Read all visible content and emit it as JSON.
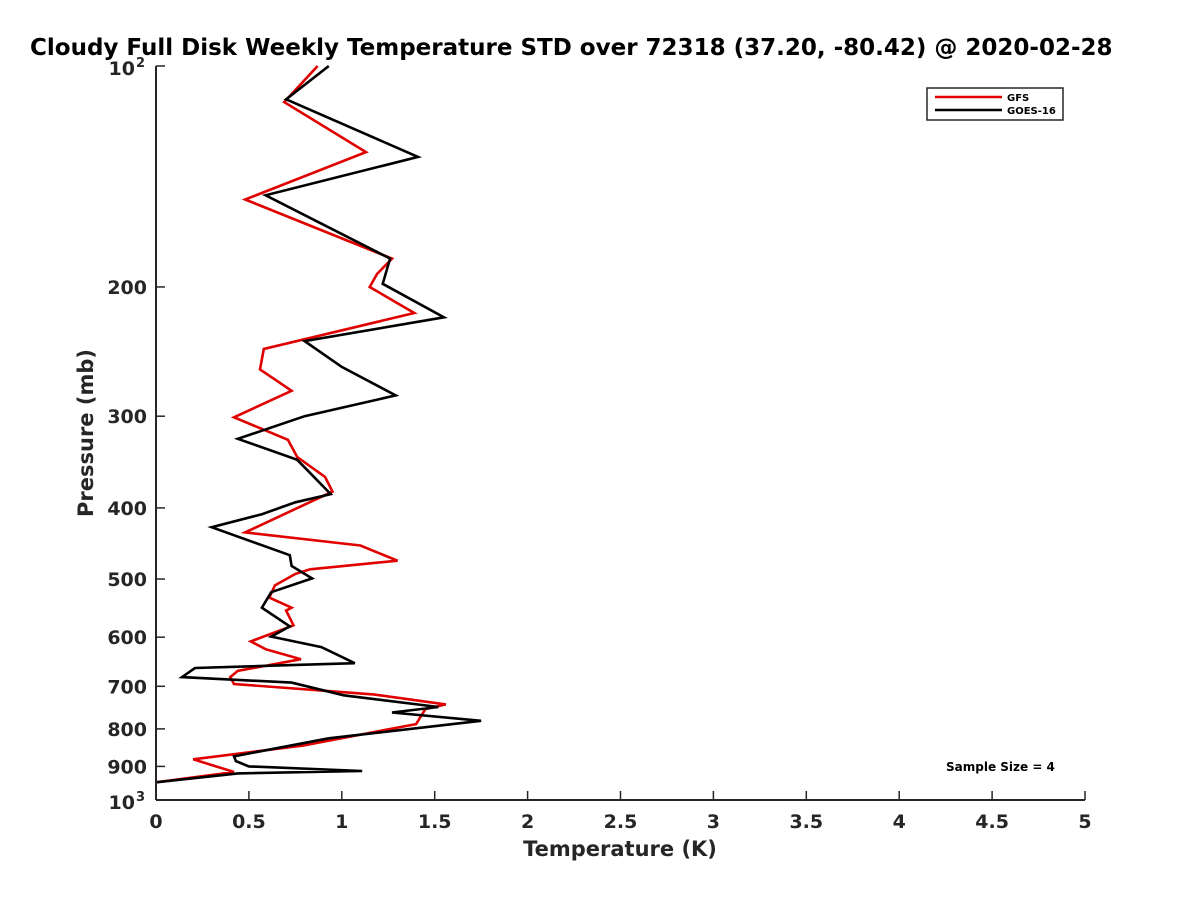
{
  "chart_data": {
    "type": "line",
    "title": "Cloudy Full Disk Weekly Temperature STD over 72318 (37.20, -80.42) @ 2020-02-28",
    "xlabel": "Temperature (K)",
    "ylabel": "Pressure (mb)",
    "xlim": [
      0,
      5
    ],
    "ylim": [
      100,
      1000
    ],
    "yscale": "log",
    "y_reversed": true,
    "grid": false,
    "legend_position": "top-right",
    "x_ticks": [
      "0",
      "0.5",
      "1",
      "1.5",
      "2",
      "2.5",
      "3",
      "3.5",
      "4",
      "4.5",
      "5"
    ],
    "y_ticks": [
      {
        "value": 100,
        "base": "10",
        "exp": "2"
      },
      {
        "value": 200,
        "label": "200"
      },
      {
        "value": 300,
        "label": "300"
      },
      {
        "value": 400,
        "label": "400"
      },
      {
        "value": 500,
        "label": "500"
      },
      {
        "value": 600,
        "label": "600"
      },
      {
        "value": 700,
        "label": "700"
      },
      {
        "value": 800,
        "label": "800"
      },
      {
        "value": 900,
        "label": "900"
      },
      {
        "value": 1000,
        "base": "10",
        "exp": "3"
      }
    ],
    "annotation": "Sample Size = 4",
    "series": [
      {
        "name": "GFS",
        "color": "#e00000",
        "points": [
          [
            0.87,
            100
          ],
          [
            0.69,
            112
          ],
          [
            1.13,
            131
          ],
          [
            0.48,
            152
          ],
          [
            1.27,
            183
          ],
          [
            1.19,
            192
          ],
          [
            1.15,
            200
          ],
          [
            1.39,
            217
          ],
          [
            0.58,
            243
          ],
          [
            0.56,
            259
          ],
          [
            0.73,
            277
          ],
          [
            0.42,
            301
          ],
          [
            0.71,
            323
          ],
          [
            0.76,
            341
          ],
          [
            0.91,
            363
          ],
          [
            0.95,
            380
          ],
          [
            0.48,
            432
          ],
          [
            1.1,
            450
          ],
          [
            1.3,
            472
          ],
          [
            0.83,
            485
          ],
          [
            0.75,
            492
          ],
          [
            0.64,
            510
          ],
          [
            0.61,
            530
          ],
          [
            0.73,
            547
          ],
          [
            0.7,
            552
          ],
          [
            0.74,
            578
          ],
          [
            0.51,
            608
          ],
          [
            0.59,
            623
          ],
          [
            0.78,
            643
          ],
          [
            0.44,
            667
          ],
          [
            0.4,
            680
          ],
          [
            0.42,
            695
          ],
          [
            1.17,
            718
          ],
          [
            1.56,
            741
          ],
          [
            1.45,
            752
          ],
          [
            1.4,
            788
          ],
          [
            0.79,
            843
          ],
          [
            0.2,
            880
          ],
          [
            0.42,
            916
          ],
          [
            0.0,
            946
          ]
        ]
      },
      {
        "name": "GOES-16",
        "color": "#000000",
        "points": [
          [
            0.93,
            100
          ],
          [
            0.7,
            111
          ],
          [
            1.41,
            133
          ],
          [
            0.59,
            150
          ],
          [
            1.26,
            183
          ],
          [
            1.22,
            198
          ],
          [
            1.55,
            220
          ],
          [
            0.8,
            237
          ],
          [
            1.0,
            257
          ],
          [
            1.29,
            281
          ],
          [
            0.8,
            300
          ],
          [
            0.44,
            322
          ],
          [
            0.76,
            344
          ],
          [
            0.94,
            383
          ],
          [
            0.75,
            393
          ],
          [
            0.57,
            408
          ],
          [
            0.3,
            425
          ],
          [
            0.72,
            464
          ],
          [
            0.73,
            480
          ],
          [
            0.84,
            499
          ],
          [
            0.62,
            521
          ],
          [
            0.57,
            547
          ],
          [
            0.72,
            580
          ],
          [
            0.62,
            599
          ],
          [
            0.89,
            619
          ],
          [
            1.07,
            651
          ],
          [
            0.21,
            661
          ],
          [
            0.14,
            680
          ],
          [
            0.73,
            692
          ],
          [
            1.01,
            720
          ],
          [
            1.52,
            747
          ],
          [
            1.27,
            760
          ],
          [
            1.75,
            780
          ],
          [
            0.93,
            824
          ],
          [
            0.42,
            872
          ],
          [
            0.43,
            885
          ],
          [
            0.5,
            900
          ],
          [
            1.11,
            913
          ],
          [
            0.44,
            920
          ],
          [
            0.0,
            946
          ]
        ]
      }
    ]
  }
}
